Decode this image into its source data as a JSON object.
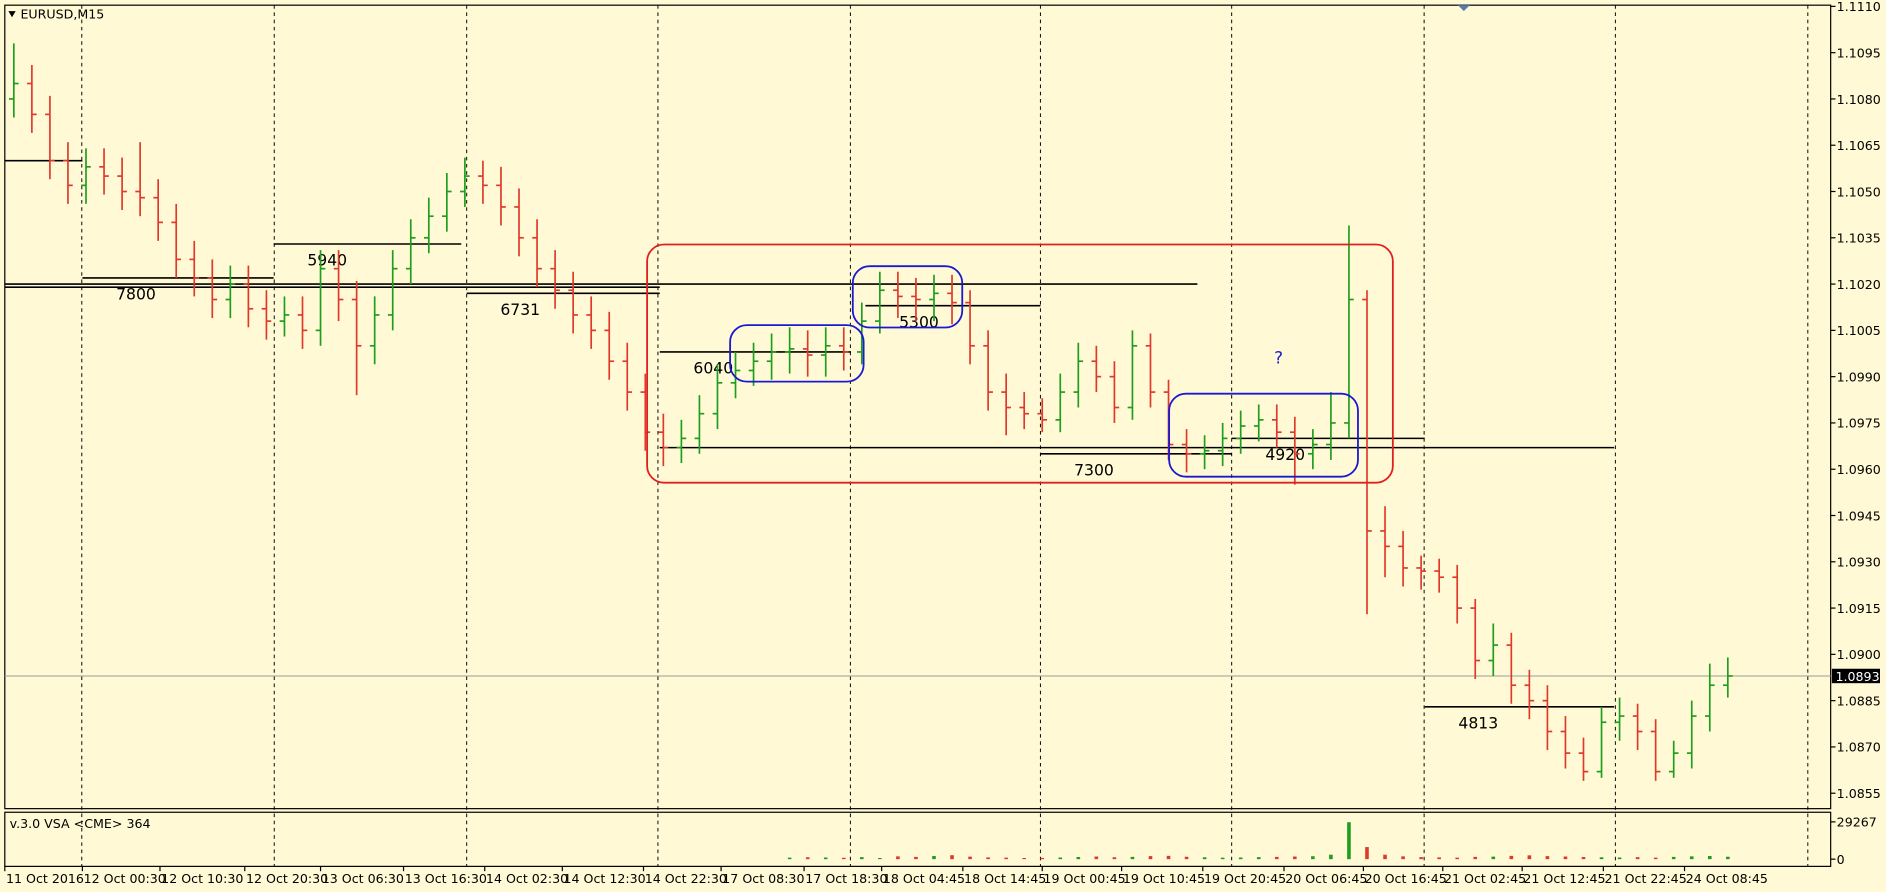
{
  "chart_data": {
    "type": "ohlc",
    "title": "EURUSD,M15",
    "volume_title": "v.3.0 VSA <CME> 364",
    "up_color": "#1e9e1e",
    "down_color": "#e0392b",
    "ylim": [
      1.085,
      1.111
    ],
    "yticks": [
      {
        "value": 1.111,
        "label": "1.1110"
      },
      1.1095,
      {
        "value": 1.108,
        "label": "1.1080"
      },
      1.1065,
      {
        "value": 1.105,
        "label": "1.1050"
      },
      1.1035,
      {
        "value": 1.102,
        "label": "1.1020"
      },
      1.1005,
      {
        "value": 1.099,
        "label": "1.0990"
      },
      1.0975,
      {
        "value": 1.096,
        "label": "1.0960"
      },
      1.0945,
      {
        "value": 1.093,
        "label": "1.0930"
      },
      1.0915,
      {
        "value": 1.09,
        "label": "1.0900"
      },
      1.0885,
      {
        "value": 1.087,
        "label": "1.0870"
      },
      1.0855
    ],
    "current_price": 1.0893,
    "xlim": [
      -0.5,
      100.7
    ],
    "xticks": [
      {
        "value": -0.5,
        "label": "11 Oct 2016"
      },
      {
        "value": 3.8,
        "label": "12 Oct 00:30"
      },
      {
        "value": 8.1,
        "label": "12 Oct 10:30"
      },
      {
        "value": 12.8,
        "label": "12 Oct 20:30"
      },
      {
        "value": 17.0,
        "label": "13 Oct 06:30"
      },
      {
        "value": 21.6,
        "label": "13 Oct 16:30"
      },
      {
        "value": 26.1,
        "label": "14 Oct 02:30"
      },
      {
        "value": 30.4,
        "label": "14 Oct 12:30"
      },
      {
        "value": 34.9,
        "label": "14 Oct 22:30"
      },
      {
        "value": 39.2,
        "label": "17 Oct 08:30"
      },
      {
        "value": 43.8,
        "label": "17 Oct 18:30"
      },
      {
        "value": 48.1,
        "label": "18 Oct 04:45"
      },
      {
        "value": 52.6,
        "label": "18 Oct 14:45"
      },
      {
        "value": 57.0,
        "label": "19 Oct 00:45"
      },
      {
        "value": 61.4,
        "label": "19 Oct 10:45"
      },
      {
        "value": 65.9,
        "label": "19 Oct 20:45"
      },
      {
        "value": 70.4,
        "label": "20 Oct 06:45"
      },
      {
        "value": 74.8,
        "label": "20 Oct 16:45"
      },
      {
        "value": 79.2,
        "label": "21 Oct 02:45"
      },
      {
        "value": 83.6,
        "label": "21 Oct 12:45"
      },
      {
        "value": 88.1,
        "label": "21 Oct 22:45"
      },
      {
        "value": 92.6,
        "label": "24 Oct 08:45"
      }
    ],
    "open": [
      1.108,
      1.1085,
      1.1075,
      1.106,
      1.1052,
      1.1058,
      1.1055,
      1.105,
      1.1048,
      1.104,
      1.1028,
      1.1022,
      1.1015,
      1.102,
      1.1012,
      1.1008,
      1.101,
      1.1005,
      1.1025,
      1.1015,
      1.1,
      1.101,
      1.1025,
      1.1035,
      1.1042,
      1.105,
      1.1055,
      1.1052,
      1.1045,
      1.1035,
      1.1025,
      1.1018,
      1.101,
      1.1005,
      1.0995,
      1.0985,
      1.0972,
      1.0967,
      1.097,
      1.0978,
      1.0988,
      1.0992,
      1.0995,
      1.0998,
      1.0999,
      1.0997,
      1.1,
      1.0998,
      1.1008,
      1.1018,
      1.1016,
      1.1015,
      1.1017,
      1.1014,
      1.1,
      1.0985,
      1.098,
      1.0978,
      1.0976,
      1.0985,
      1.0995,
      1.099,
      1.098,
      1.1,
      1.0985,
      1.0968,
      1.0965,
      1.0966,
      1.097,
      1.0974,
      1.0976,
      1.0972,
      1.0965,
      1.0968,
      1.0975,
      1.1015,
      1.094,
      1.0935,
      1.0928,
      1.0927,
      1.0925,
      1.0915,
      1.0898,
      1.0903,
      1.089,
      1.0885,
      1.0875,
      1.0868,
      1.0862,
      1.0878,
      1.088,
      1.0875,
      1.0862,
      1.0868,
      1.088,
      1.089
    ],
    "high": [
      1.1098,
      1.1091,
      1.1081,
      1.1066,
      1.1064,
      1.1064,
      1.1061,
      1.1066,
      1.1054,
      1.1046,
      1.1034,
      1.1028,
      1.1026,
      1.1026,
      1.1018,
      1.1016,
      1.1016,
      1.1031,
      1.1031,
      1.1021,
      1.1016,
      1.1031,
      1.1041,
      1.1048,
      1.1056,
      1.1061,
      1.106,
      1.1058,
      1.1051,
      1.1041,
      1.1031,
      1.1024,
      1.1016,
      1.1011,
      1.1001,
      1.0991,
      1.0978,
      1.0976,
      1.0984,
      1.0994,
      1.0998,
      1.1001,
      1.1004,
      1.1006,
      1.1005,
      1.1006,
      1.1006,
      1.1014,
      1.1024,
      1.1024,
      1.1022,
      1.1023,
      1.1023,
      1.1018,
      1.1005,
      1.0991,
      1.0985,
      1.0983,
      1.0991,
      1.1001,
      1.1,
      1.0995,
      1.1005,
      1.1004,
      1.0989,
      1.0973,
      1.0971,
      1.0975,
      1.0979,
      1.0981,
      1.0981,
      1.0977,
      1.0973,
      1.0985,
      1.1039,
      1.1018,
      1.0948,
      1.094,
      1.0932,
      1.0931,
      1.0929,
      1.0918,
      1.091,
      1.0907,
      1.0895,
      1.089,
      1.088,
      1.0873,
      1.0883,
      1.0886,
      1.0884,
      1.0879,
      1.0872,
      1.0885,
      1.0897,
      1.0899
    ],
    "low": [
      1.1074,
      1.1069,
      1.1054,
      1.1046,
      1.1046,
      1.1049,
      1.1044,
      1.1042,
      1.1034,
      1.1022,
      1.1016,
      1.1009,
      1.1009,
      1.1006,
      1.1002,
      1.1003,
      1.0999,
      1.1,
      1.1008,
      1.0984,
      1.0994,
      1.1005,
      1.102,
      1.103,
      1.1037,
      1.1045,
      1.1046,
      1.1039,
      1.1029,
      1.1019,
      1.1012,
      1.1004,
      1.0999,
      1.0989,
      1.0979,
      1.0966,
      1.0961,
      1.0962,
      1.0965,
      1.0973,
      1.0983,
      1.0987,
      1.0989,
      1.0991,
      1.099,
      1.099,
      1.0992,
      1.0994,
      1.1004,
      1.1009,
      1.1008,
      1.1008,
      1.1007,
      1.0994,
      1.0979,
      1.0971,
      1.0973,
      1.0972,
      1.0972,
      1.098,
      1.0985,
      1.0975,
      1.0976,
      1.098,
      1.0963,
      1.0959,
      1.096,
      1.0961,
      1.0965,
      1.0969,
      1.0967,
      1.0955,
      1.096,
      1.0963,
      1.097,
      1.0913,
      1.0925,
      1.0922,
      1.0921,
      1.092,
      1.091,
      1.0892,
      1.0893,
      1.0884,
      1.0879,
      1.0869,
      1.0863,
      1.0859,
      1.086,
      1.0872,
      1.0869,
      1.0859,
      1.086,
      1.0863,
      1.0875,
      1.0886
    ],
    "close": [
      1.1085,
      1.1075,
      1.106,
      1.1052,
      1.1058,
      1.1055,
      1.105,
      1.1048,
      1.104,
      1.1028,
      1.1022,
      1.1015,
      1.102,
      1.1012,
      1.1008,
      1.101,
      1.1005,
      1.1025,
      1.1015,
      1.1,
      1.101,
      1.1025,
      1.1035,
      1.1042,
      1.105,
      1.1055,
      1.1052,
      1.1045,
      1.1035,
      1.1025,
      1.1018,
      1.101,
      1.1005,
      1.0995,
      1.0985,
      1.0972,
      1.0967,
      1.097,
      1.0978,
      1.0988,
      1.0992,
      1.0995,
      1.0998,
      1.0999,
      1.0997,
      1.1,
      1.0998,
      1.1008,
      1.1018,
      1.1016,
      1.1015,
      1.1017,
      1.1014,
      1.1,
      1.0985,
      1.098,
      1.0978,
      1.0976,
      1.0985,
      1.0995,
      1.099,
      1.098,
      1.1,
      1.0985,
      1.0968,
      1.0965,
      1.0966,
      1.097,
      1.0974,
      1.0976,
      1.0972,
      1.0965,
      1.0968,
      1.0975,
      1.1015,
      1.094,
      1.0935,
      1.0928,
      1.0927,
      1.0925,
      1.0915,
      1.0898,
      1.0903,
      1.089,
      1.0885,
      1.0875,
      1.0868,
      1.0862,
      1.0878,
      1.088,
      1.0875,
      1.0862,
      1.0868,
      1.088,
      1.089,
      1.0893
    ],
    "volume_ylim": [
      0,
      29267
    ],
    "volume_yticks": [
      29267,
      0
    ],
    "volume": [
      0,
      0,
      0,
      0,
      0,
      0,
      0,
      0,
      0,
      0,
      0,
      0,
      0,
      0,
      0,
      0,
      0,
      0,
      0,
      0,
      0,
      0,
      0,
      0,
      0,
      0,
      0,
      0,
      0,
      0,
      0,
      0,
      0,
      0,
      0,
      0,
      0,
      0,
      0,
      0,
      0,
      0,
      0,
      1200,
      1500,
      1300,
      1100,
      1600,
      900,
      2200,
      1800,
      2500,
      3100,
      2000,
      1400,
      1200,
      900,
      1000,
      1300,
      1700,
      2100,
      1500,
      1800,
      2400,
      2600,
      1900,
      1500,
      1200,
      1300,
      1600,
      1800,
      2100,
      2300,
      3500,
      29000,
      9500,
      3500,
      2200,
      1600,
      1400,
      1200,
      1800,
      2000,
      2600,
      3000,
      2400,
      2100,
      1700,
      1500,
      1300,
      1600,
      1200,
      1800,
      2200,
      2500,
      1900
    ],
    "levels": [
      {
        "price": 1.106,
        "from": -0.5,
        "to": 3.8
      },
      {
        "price": 1.1022,
        "from": 3.8,
        "to": 14.4,
        "label": "7800"
      },
      {
        "price": 1.1033,
        "from": 14.4,
        "to": 24.8,
        "label": "5940"
      },
      {
        "price": 1.102,
        "from": -0.5,
        "to": 65.6
      },
      {
        "price": 1.1019,
        "from": -0.5,
        "to": 35.8
      },
      {
        "price": 1.1017,
        "from": 25.1,
        "to": 35.8,
        "label": "6731"
      },
      {
        "price": 1.0998,
        "from": 35.8,
        "to": 46.4,
        "label": "6040"
      },
      {
        "price": 1.1013,
        "from": 47.2,
        "to": 56.9,
        "label": "5300"
      },
      {
        "price": 1.0967,
        "from": 35.8,
        "to": 88.7
      },
      {
        "price": 1.0965,
        "from": 56.9,
        "to": 67.5,
        "label": "7300"
      },
      {
        "price": 1.097,
        "from": 67.5,
        "to": 78.2,
        "label": "4920"
      },
      {
        "price": 1.0883,
        "from": 78.2,
        "to": 88.7,
        "label": "4813"
      }
    ],
    "annotation": "?"
  }
}
